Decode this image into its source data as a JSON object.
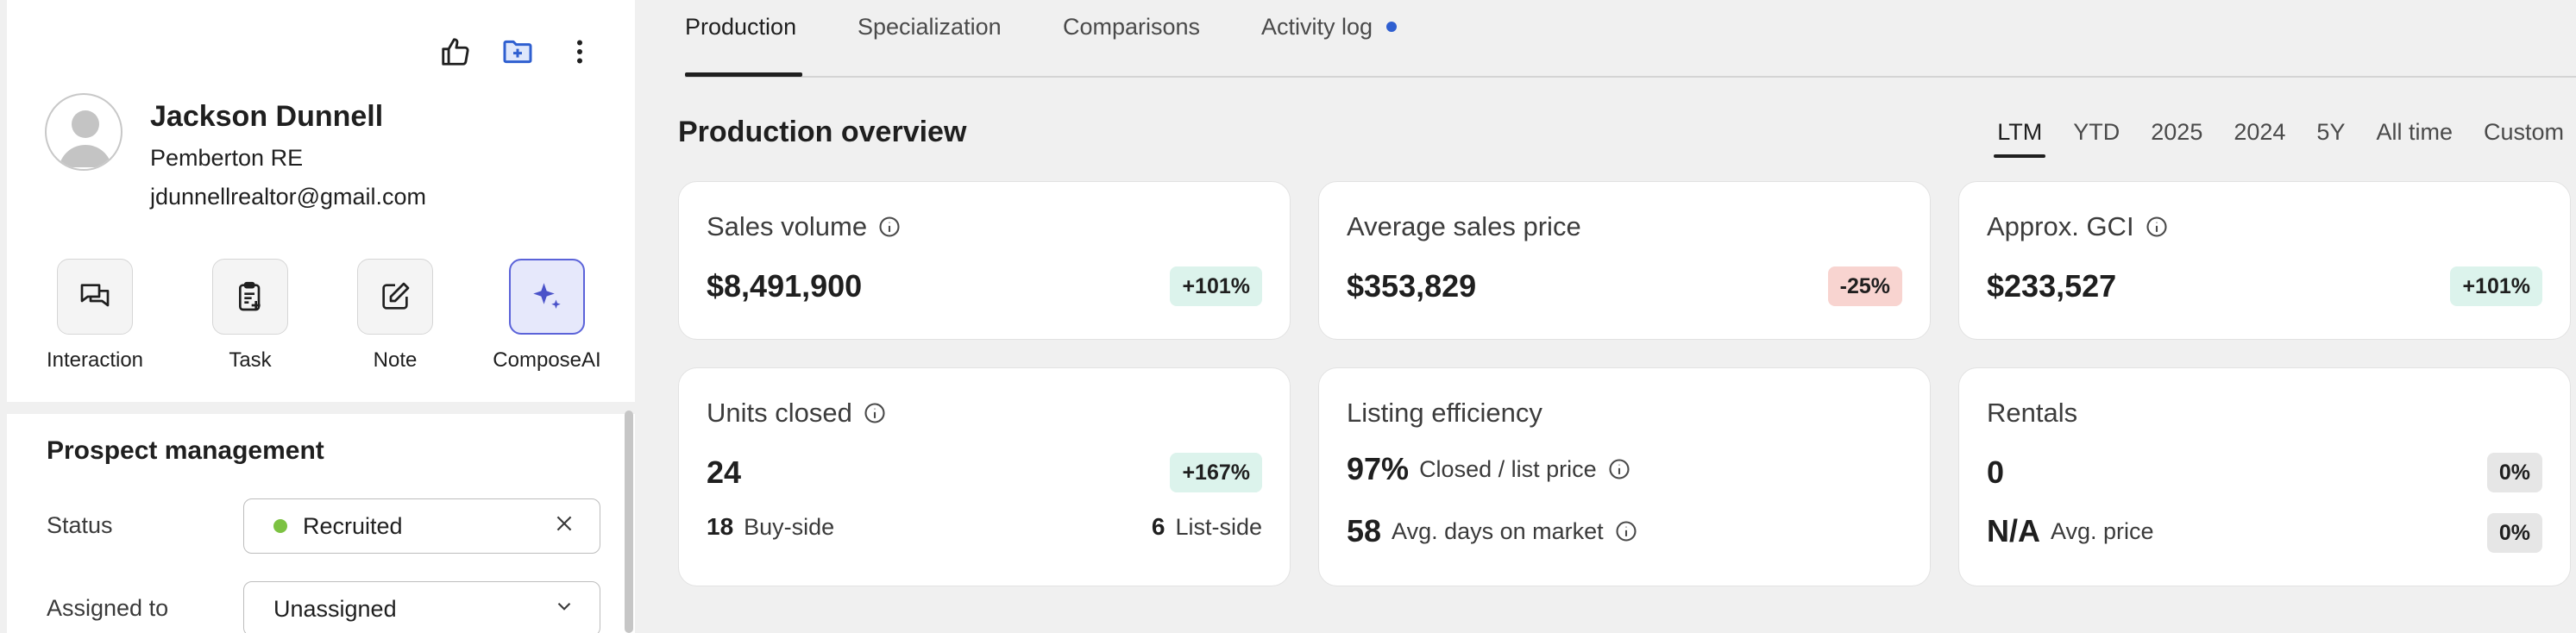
{
  "contact": {
    "name": "Jackson Dunnell",
    "company": "Pemberton RE",
    "email": "jdunnellrealtor@gmail.com"
  },
  "quick_actions": [
    {
      "label": "Interaction",
      "icon": "chat-icon"
    },
    {
      "label": "Task",
      "icon": "task-icon"
    },
    {
      "label": "Note",
      "icon": "edit-note-icon"
    },
    {
      "label": "ComposeAI",
      "icon": "sparkle-icon"
    }
  ],
  "prospect_management": {
    "title": "Prospect management",
    "status_label": "Status",
    "status_value": "Recruited",
    "status_color": "#7cc242",
    "assigned_label": "Assigned to",
    "assigned_value": "Unassigned"
  },
  "tabs": [
    {
      "label": "Production",
      "active": true
    },
    {
      "label": "Specialization"
    },
    {
      "label": "Comparisons"
    },
    {
      "label": "Activity log",
      "dot_color": "#2f5fd0"
    }
  ],
  "overview": {
    "title": "Production overview",
    "ranges": [
      "LTM",
      "YTD",
      "2025",
      "2024",
      "5Y",
      "All time",
      "Custom"
    ],
    "active_range": "LTM"
  },
  "cards": {
    "sales_volume": {
      "title": "Sales volume",
      "value": "$8,491,900",
      "change": "+101%"
    },
    "avg_sales_price": {
      "title": "Average sales price",
      "value": "$353,829",
      "change": "-25%"
    },
    "approx_gci": {
      "title": "Approx. GCI",
      "value": "$233,527",
      "change": "+101%"
    },
    "units_closed": {
      "title": "Units closed",
      "value": "24",
      "change": "+167%",
      "buy_side_count": "18",
      "buy_side_label": "Buy-side",
      "list_side_count": "6",
      "list_side_label": "List-side"
    },
    "listing_efficiency": {
      "title": "Listing efficiency",
      "closed_list_value": "97%",
      "closed_list_label": "Closed / list price",
      "dom_value": "58",
      "dom_label": "Avg. days on market"
    },
    "rentals": {
      "title": "Rentals",
      "value": "0",
      "change": "0%",
      "avg_price_value": "N/A",
      "avg_price_label": "Avg. price",
      "avg_price_change": "0%"
    }
  },
  "colors": {
    "accent_blue": "#2f5fd0",
    "positive_badge": "#dcf3ec",
    "negative_badge": "#f8d4d0"
  }
}
